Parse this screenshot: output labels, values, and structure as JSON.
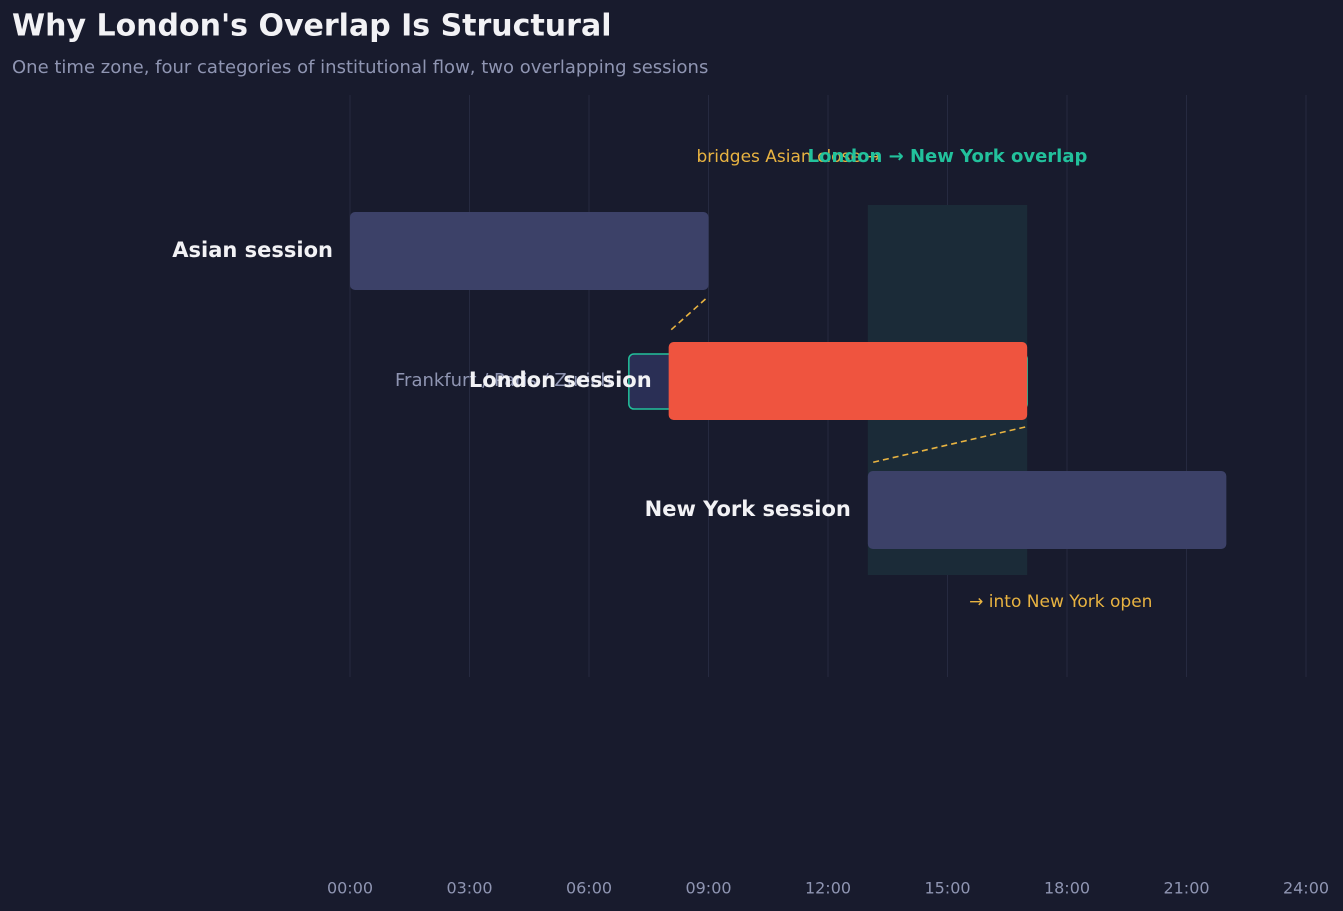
{
  "chart_data": {
    "type": "gantt",
    "title": "Why London's Overlap Is Structural",
    "subtitle": "One time zone, four categories of institutional flow, two overlapping sessions",
    "xlim": [
      0,
      24
    ],
    "xticks": [
      {
        "value": 0,
        "label": "00:00"
      },
      {
        "value": 3,
        "label": "03:00"
      },
      {
        "value": 6,
        "label": "06:00"
      },
      {
        "value": 9,
        "label": "09:00"
      },
      {
        "value": 12,
        "label": "12:00"
      },
      {
        "value": 15,
        "label": "15:00"
      },
      {
        "value": 18,
        "label": "18:00"
      },
      {
        "value": 21,
        "label": "21:00"
      },
      {
        "value": 24,
        "label": "24:00"
      }
    ],
    "grid": true,
    "tasks": [
      {
        "name": "Asian session",
        "start": 0,
        "end": 9,
        "color": "#3c4168"
      },
      {
        "name": "London session",
        "start": 8,
        "end": 17,
        "color": "#ef543f"
      },
      {
        "name": "New York session",
        "start": 13,
        "end": 22,
        "color": "#3c4168"
      }
    ],
    "pre_open": {
      "name": "Frankfurt / Paris / Zurich",
      "start": 7,
      "end": 17,
      "color": "#2a2f55",
      "edge_color": "#22c19c"
    },
    "overlap": {
      "label": "London → New York overlap",
      "start": 13,
      "end": 17,
      "color": "#1b2b38"
    },
    "annotations": [
      "bridges Asian close →",
      "→ into New York open"
    ]
  }
}
